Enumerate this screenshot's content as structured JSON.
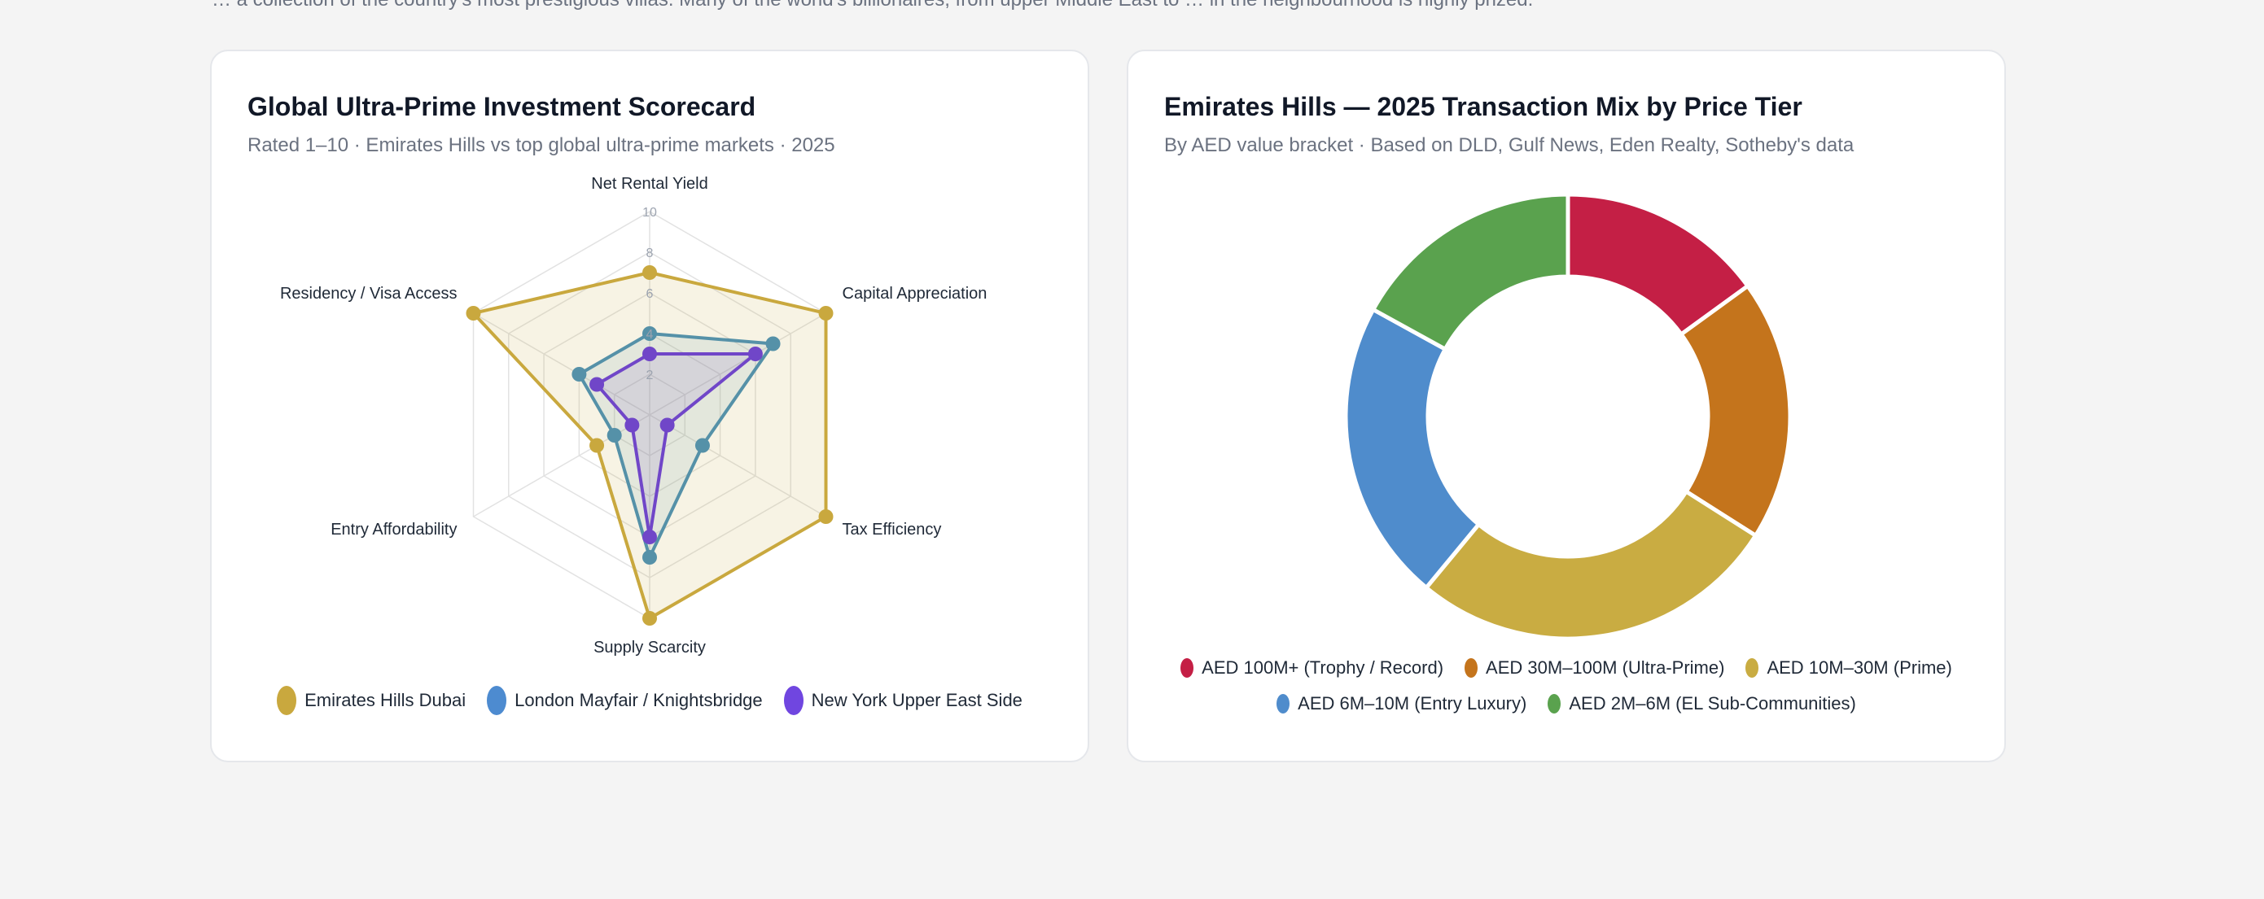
{
  "page": {
    "top_text": "… a collection of the country's most prestigious villas. Many of the world's billionaires, from upper Middle East to … in the neighbourhood is highly prized."
  },
  "chart_data": [
    {
      "type": "radar",
      "title": "Global Ultra-Prime Investment Scorecard",
      "subtitle": "Rated 1–10 · Emirates Hills vs top global ultra-prime markets · 2025",
      "axes": [
        "Net Rental Yield",
        "Capital Appreciation",
        "Tax Efficiency",
        "Supply Scarcity",
        "Entry Affordability",
        "Residency / Visa Access"
      ],
      "ticks": [
        "2",
        "4",
        "6",
        "8",
        "10"
      ],
      "range": [
        0,
        10
      ],
      "legend_position": "bottom",
      "series": [
        {
          "name": "Emirates Hills Dubai",
          "values": [
            7,
            10,
            10,
            10,
            3,
            10
          ],
          "color": "#c9a83e"
        },
        {
          "name": "London Mayfair / Knightsbridge",
          "values": [
            4,
            7,
            3,
            7,
            2,
            4
          ],
          "color": "#5591a8"
        },
        {
          "name": "New York Upper East Side",
          "values": [
            3,
            6,
            1,
            6,
            1,
            3
          ],
          "color": "#7046c8"
        }
      ],
      "legend_colors": [
        "#c9a83e",
        "#4d8bd0",
        "#7046e0"
      ]
    },
    {
      "type": "pie",
      "title": "Emirates Hills — 2025 Transaction Mix by Price Tier",
      "subtitle": "By AED value bracket · Based on DLD, Gulf News, Eden Realty, Sotheby's data",
      "legend_position": "bottom",
      "categories": [
        "AED 100M+ (Trophy / Record)",
        "AED 30M–100M (Ultra-Prime)",
        "AED 10M–30M (Prime)",
        "AED 6M–10M (Entry Luxury)",
        "AED 2M–6M (EL Sub-Communities)"
      ],
      "values": [
        15,
        19,
        27,
        22,
        17
      ],
      "colors": [
        "#c41f45",
        "#c4741c",
        "#c9ac42",
        "#4f8ccc",
        "#5aa24e"
      ]
    }
  ]
}
